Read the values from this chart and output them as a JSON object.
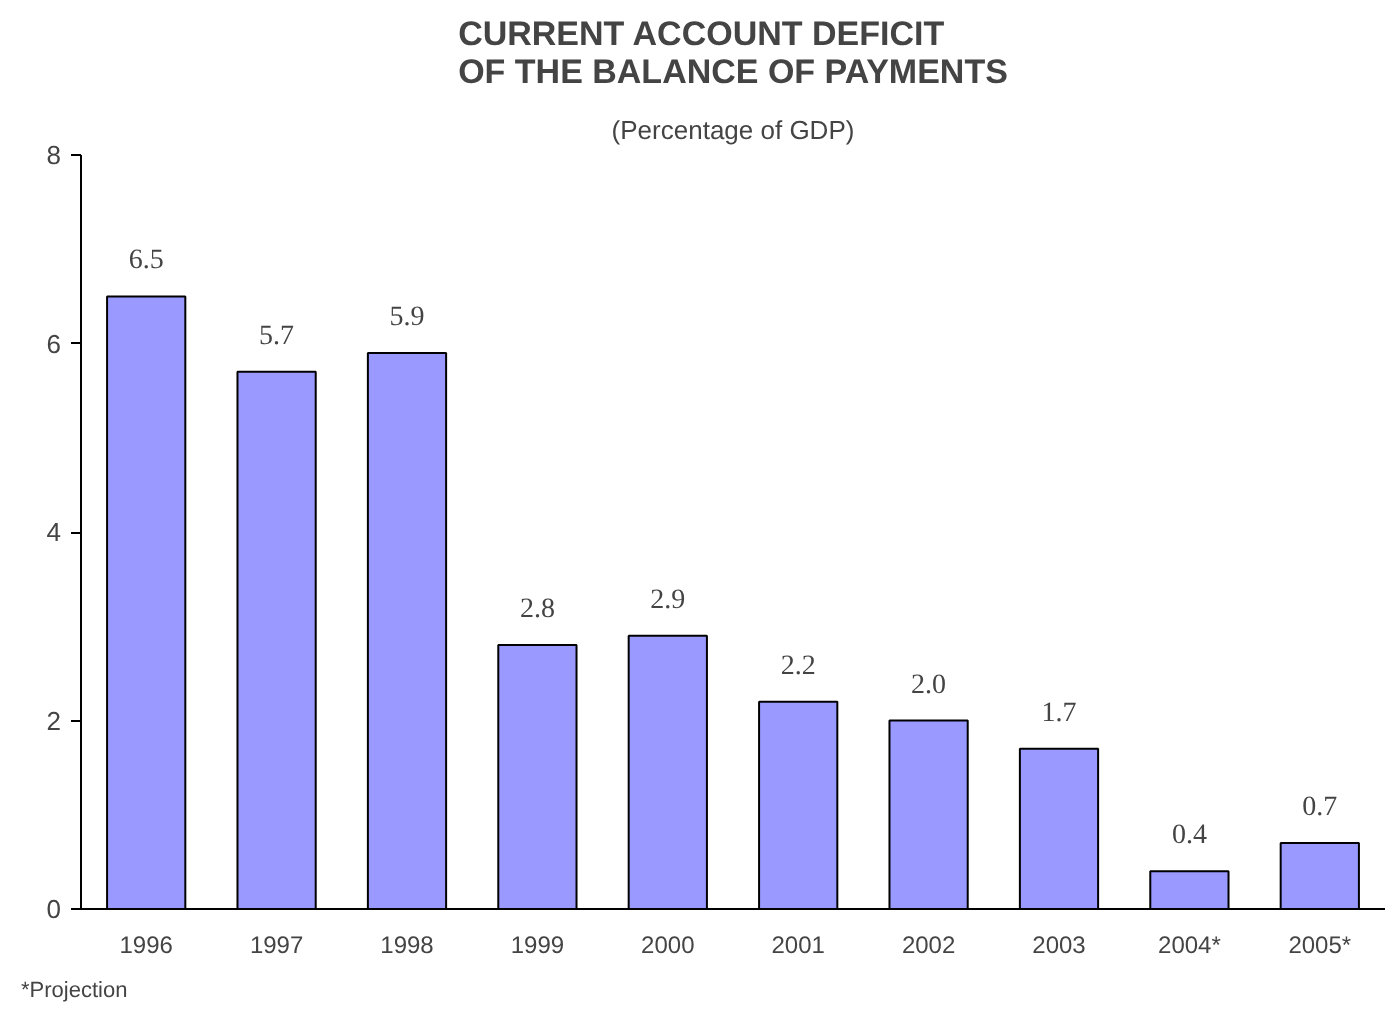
{
  "chart_data": {
    "type": "bar",
    "title": "CURRENT ACCOUNT DEFICIT OF THE BALANCE OF PAYMENTS",
    "subtitle": "(Percentage of GDP)",
    "categories": [
      "1996",
      "1997",
      "1998",
      "1999",
      "2000",
      "2001",
      "2002",
      "2003",
      "2004*",
      "2005*"
    ],
    "values": [
      6.5,
      5.7,
      5.9,
      2.8,
      2.9,
      2.2,
      2.0,
      1.7,
      0.4,
      0.7
    ],
    "value_labels": [
      "6.5",
      "5.7",
      "5.9",
      "2.8",
      "2.9",
      "2.2",
      "2.0",
      "1.7",
      "0.4",
      "0.7"
    ],
    "color": "#9999ff",
    "ylim": [
      0,
      8
    ],
    "yticks": [
      0,
      2,
      4,
      6,
      8
    ],
    "grid": false,
    "annotations": [
      "*Projection"
    ]
  }
}
